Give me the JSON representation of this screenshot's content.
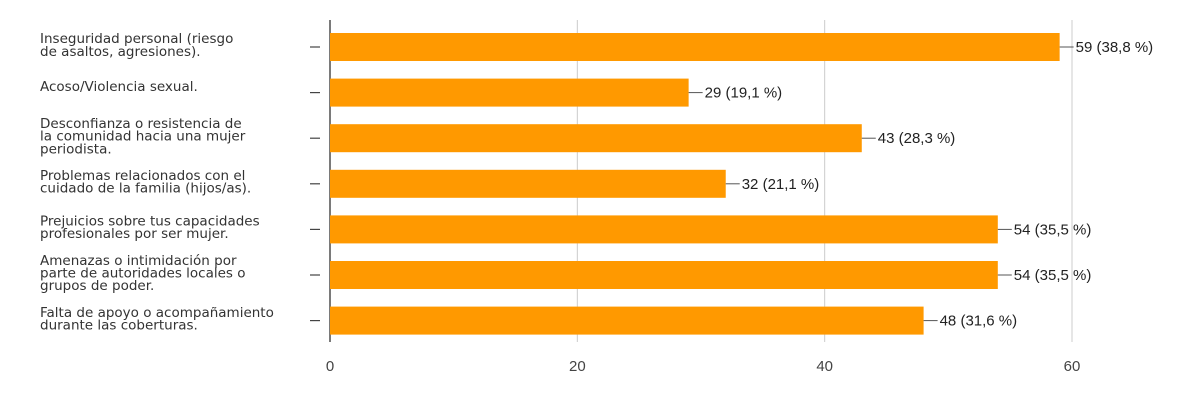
{
  "chart_data": {
    "type": "bar",
    "orientation": "horizontal",
    "categories": [
      [
        "Inseguridad personal (riesgo",
        "de asaltos, agresiones)."
      ],
      [
        "Acoso/Violencia sexual."
      ],
      [
        "Desconfianza o resistencia de",
        "la comunidad hacia una mujer",
        "periodista."
      ],
      [
        "Problemas relacionados con el",
        "cuidado de la familia (hijos/as)."
      ],
      [
        "Prejuicios sobre tus capacidades",
        "profesionales por ser mujer."
      ],
      [
        "Amenazas o intimidación por",
        "parte de autoridades locales o",
        "grupos de poder."
      ],
      [
        "Falta de apoyo o acompañamiento",
        "durante las coberturas."
      ]
    ],
    "values": [
      59,
      29,
      43,
      32,
      54,
      54,
      48
    ],
    "value_labels": [
      "59 (38,8 %)",
      "29 (19,1 %)",
      "43 (28,3 %)",
      "32 (21,1 %)",
      "54 (35,5 %)",
      "54 (35,5 %)",
      "48 (31,6 %)"
    ],
    "xlim": [
      0,
      60
    ],
    "x_ticks": [
      0,
      20,
      40,
      60
    ],
    "bar_color": "#FF9900",
    "axis_color": "#333333",
    "grid": true,
    "title": "",
    "xlabel": "",
    "ylabel": ""
  }
}
